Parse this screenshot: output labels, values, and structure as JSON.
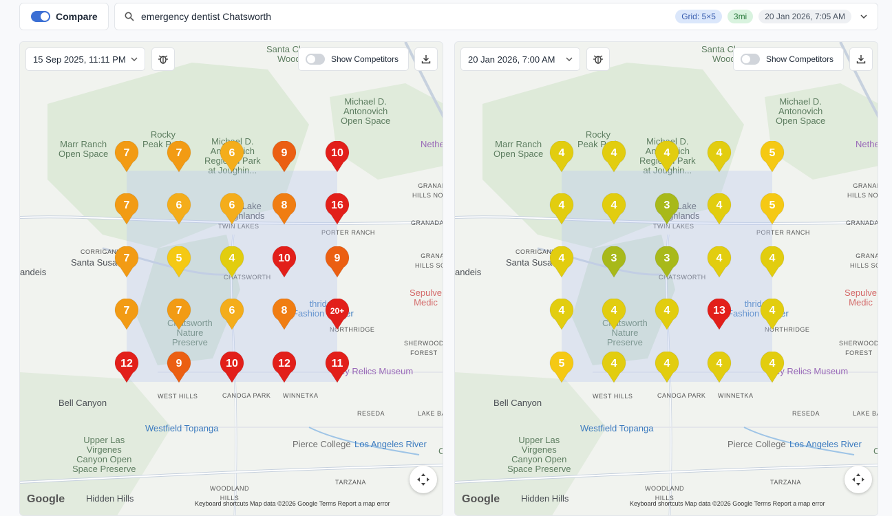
{
  "toolbar": {
    "compare_label": "Compare",
    "search_value": "emergency dentist Chatsworth",
    "grid_badge": "Grid: 5×5",
    "distance_badge": "3mi",
    "date_badge": "20 Jan 2026, 7:05 AM"
  },
  "left_panel": {
    "date": "15 Sep 2025, 11:11 PM",
    "competitors_label": "Show Competitors",
    "ranks": [
      [
        "7",
        "7",
        "6",
        "9",
        "10"
      ],
      [
        "7",
        "6",
        "6",
        "8",
        "16"
      ],
      [
        "7",
        "5",
        "4",
        "10",
        "9"
      ],
      [
        "7",
        "7",
        "6",
        "8",
        "20+"
      ],
      [
        "12",
        "9",
        "10",
        "12",
        "11"
      ]
    ]
  },
  "right_panel": {
    "date": "20 Jan 2026, 7:00 AM",
    "competitors_label": "Show Competitors",
    "ranks": [
      [
        "4",
        "4",
        "4",
        "4",
        "5"
      ],
      [
        "4",
        "4",
        "3",
        "4",
        "5"
      ],
      [
        "4",
        "3",
        "3",
        "4",
        "4"
      ],
      [
        "4",
        "4",
        "4",
        "13",
        "4"
      ],
      [
        "5",
        "4",
        "4",
        "4",
        "4"
      ]
    ]
  },
  "rank_colors": {
    "3": "#a8b91a",
    "4": "#e2cd0f",
    "5": "#f5c914",
    "6": "#f4ad1b",
    "7": "#f29b14",
    "8": "#f07d12",
    "9": "#eb5f12",
    "high": "#e21f1a"
  },
  "map": {
    "labels": {
      "santa_clara": "Santa Clara\nWoodl",
      "michael_antonovich": "Michael D.\nAntonovich\nOpen Space",
      "nethe": "Nethe",
      "rocky_peak": "Rocky\nPeak Park",
      "marr_ranch": "Marr Ranch\nOpen Space",
      "michael_regional": "Michael D.\nAntonovich\nRegional Park\nat Joughin...",
      "granada_hills_north": "GRANADA\nHILLS NORTH",
      "porter_lake": "r Lake\nghlands",
      "twin_lakes": "TWIN LAKES",
      "porter_ranch": "PORTER RANCH",
      "granada": "GRANADA",
      "corriganville": "CORRIGANVILLE",
      "santa_susana": "Santa Susa",
      "andeis": "andeis",
      "chatsworth": "CHATSWORTH",
      "granada_hills_south": "GRANADA\nHILLS SOUTH",
      "northridge_fashion": "thridge\nFashion Center",
      "sepulveda": "Sepulve\nMedic",
      "chatsworth_nature": "Chatsworth\nNature\nPreserve",
      "northridge": "NORTHRIDGE",
      "sherwood_forest": "SHERWOOD\nFOREST",
      "valley_relics": "alley Relics Museum",
      "west_hills": "WEST HILLS",
      "canoga_park": "CANOGA PARK",
      "winnetka": "WINNETKA",
      "bell_canyon": "Bell Canyon",
      "reseda": "RESEDA",
      "lake_ba": "LAKE BA",
      "westfield_topanga": "Westfield Topanga",
      "pierce_college": "Pierce College",
      "upper_las_virgenes": "Upper Las\nVirgenes\nCanyon Open\nSpace Preserve",
      "los_angeles_river": "Los Angeles River",
      "cos": "Cos",
      "tarzana": "TARZANA",
      "woodland_hills": "WOODLAND\nHILLS",
      "hidden_hills": "Hidden Hills"
    },
    "google": "Google",
    "footer": "Keyboard shortcuts   Map data ©2026 Google   Terms   Report a map error"
  }
}
